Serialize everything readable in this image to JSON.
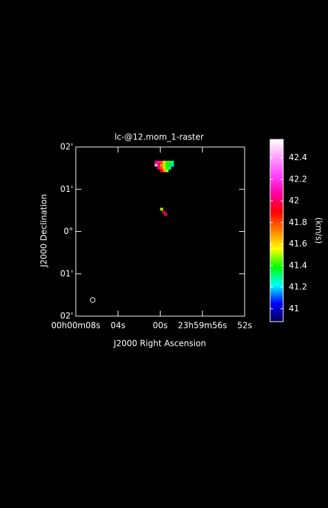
{
  "chart_data": {
    "type": "raster",
    "title": "lc-@12.mom_1-raster",
    "xlabel": "J2000 Right Ascension",
    "ylabel": "J2000 Declination",
    "xlim": [
      8,
      -8
    ],
    "ylim": [
      -2,
      2
    ],
    "xticks": [
      {
        "value": 8,
        "label": "00h00m08s"
      },
      {
        "value": 4,
        "label": "04s"
      },
      {
        "value": 0,
        "label": "00s"
      },
      {
        "value": -4,
        "label": "23h59m56s"
      },
      {
        "value": -8,
        "label": "52s"
      }
    ],
    "yticks": [
      {
        "value": 2,
        "label": "02'"
      },
      {
        "value": 1,
        "label": "01'"
      },
      {
        "value": 0,
        "label": "0°"
      },
      {
        "value": -1,
        "label": "01'"
      },
      {
        "value": -2,
        "label": "02'"
      }
    ],
    "pixels": [
      {
        "ra": 0.39,
        "dec": 1.64,
        "value": 42.0
      },
      {
        "ra": 0.13,
        "dec": 1.64,
        "value": 42.1
      },
      {
        "ra": -0.13,
        "dec": 1.64,
        "value": 41.8
      },
      {
        "ra": -0.39,
        "dec": 1.64,
        "value": 41.6
      },
      {
        "ra": -0.65,
        "dec": 1.64,
        "value": 41.4
      },
      {
        "ra": -0.9,
        "dec": 1.64,
        "value": 41.4
      },
      {
        "ra": -1.16,
        "dec": 1.64,
        "value": 41.3
      },
      {
        "ra": 0.39,
        "dec": 1.57,
        "value": 42.4
      },
      {
        "ra": 0.13,
        "dec": 1.57,
        "value": 42.0
      },
      {
        "ra": -0.13,
        "dec": 1.57,
        "value": 41.7
      },
      {
        "ra": -0.39,
        "dec": 1.57,
        "value": 41.5
      },
      {
        "ra": -0.65,
        "dec": 1.57,
        "value": 41.4
      },
      {
        "ra": -0.9,
        "dec": 1.57,
        "value": 41.4
      },
      {
        "ra": -1.16,
        "dec": 1.57,
        "value": 41.2
      },
      {
        "ra": 0.13,
        "dec": 1.5,
        "value": 42.0
      },
      {
        "ra": -0.13,
        "dec": 1.5,
        "value": 41.8
      },
      {
        "ra": -0.39,
        "dec": 1.5,
        "value": 41.6
      },
      {
        "ra": -0.65,
        "dec": 1.5,
        "value": 41.4
      },
      {
        "ra": -0.9,
        "dec": 1.5,
        "value": 41.3
      },
      {
        "ra": -0.13,
        "dec": 1.44,
        "value": 41.9
      },
      {
        "ra": -0.39,
        "dec": 1.44,
        "value": 41.7
      },
      {
        "ra": -0.65,
        "dec": 1.44,
        "value": 41.5
      },
      {
        "ra": -0.13,
        "dec": 0.53,
        "value": 41.5
      },
      {
        "ra": -0.32,
        "dec": 0.46,
        "value": 41.9
      },
      {
        "ra": -0.52,
        "dec": 0.41,
        "value": 42.0
      }
    ],
    "beam": {
      "ra": 6.4,
      "dec": -1.62
    },
    "colorbar": {
      "label": "(km/s)",
      "clim": [
        40.88,
        42.57
      ],
      "ticks": [
        41,
        41.2,
        41.4,
        41.6,
        41.8,
        42,
        42.2,
        42.4
      ],
      "colormap": [
        "#000050",
        "#0000ff",
        "#00ffff",
        "#00ff00",
        "#ffff00",
        "#ff8000",
        "#ff0000",
        "#ff00a0",
        "#ff40ff",
        "#ffa0ff",
        "#ffffff"
      ]
    }
  }
}
